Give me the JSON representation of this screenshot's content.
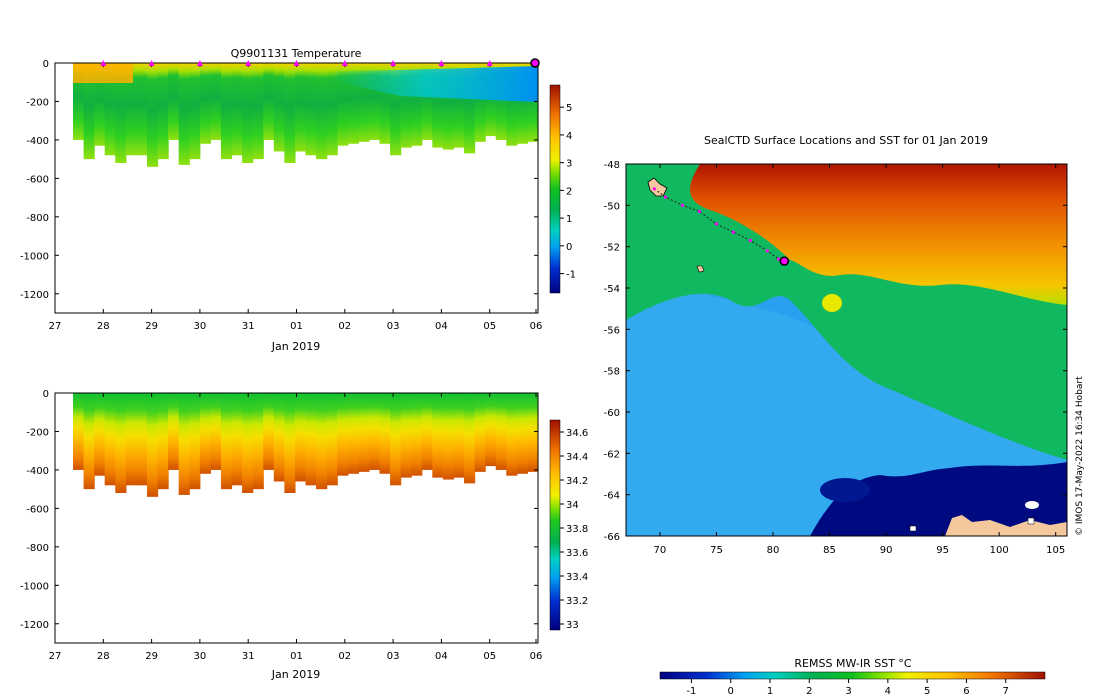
{
  "colors": {
    "land": "#f4c79c",
    "track": "#ff00ff",
    "axis": "#000000"
  },
  "chart_data": [
    {
      "id": "temperature-section",
      "type": "heatmap",
      "title": "Q9901131  Temperature",
      "xlabel": "Jan 2019",
      "ylabel": "",
      "x_tick_labels": [
        "27",
        "28",
        "29",
        "30",
        "31",
        "01",
        "02",
        "03",
        "04",
        "05",
        "06"
      ],
      "y_ticks": [
        0,
        -200,
        -400,
        -600,
        -800,
        -1000,
        -1200
      ],
      "ylim": [
        -1300,
        0
      ],
      "colorbar": {
        "ticks": [
          5,
          4,
          3,
          2,
          1,
          0,
          -1
        ],
        "range": [
          -1.7,
          5.8
        ]
      },
      "profile_markers": [
        "28",
        "29",
        "30",
        "31",
        "01",
        "02",
        "03",
        "04",
        "05",
        "06"
      ],
      "profile_depths": [
        400,
        500,
        430,
        480,
        520,
        480,
        480,
        540,
        500,
        400,
        530,
        500,
        420,
        400,
        500,
        480,
        520,
        500,
        400,
        460,
        520,
        460,
        480,
        500,
        480,
        430,
        420,
        410,
        400,
        420,
        480,
        440,
        430,
        400,
        440,
        450,
        440,
        470,
        410,
        380,
        400,
        430,
        420,
        410
      ]
    },
    {
      "id": "salinity-section",
      "type": "heatmap",
      "title": "",
      "xlabel": "Jan 2019",
      "ylabel": "",
      "x_tick_labels": [
        "27",
        "28",
        "29",
        "30",
        "31",
        "01",
        "02",
        "03",
        "04",
        "05",
        "06"
      ],
      "y_ticks": [
        0,
        -200,
        -400,
        -600,
        -800,
        -1000,
        -1200
      ],
      "ylim": [
        -1300,
        0
      ],
      "colorbar": {
        "ticks": [
          34.6,
          34.4,
          34.2,
          34,
          33.8,
          33.6,
          33.4,
          33.2,
          33
        ],
        "range": [
          32.95,
          34.7
        ]
      }
    },
    {
      "id": "sst-map",
      "type": "heatmap",
      "title": "SealCTD Surface Locations and SST for 01 Jan 2019",
      "x_tick_labels": [
        "70",
        "75",
        "80",
        "85",
        "90",
        "95",
        "100",
        "105"
      ],
      "y_tick_labels": [
        "-48",
        "-50",
        "-52",
        "-54",
        "-56",
        "-58",
        "-60",
        "-62",
        "-64",
        "-66"
      ],
      "xlim": [
        67,
        106
      ],
      "ylim": [
        -66,
        -48
      ],
      "track": [
        [
          69.5,
          -49.2
        ],
        [
          70.5,
          -49.6
        ],
        [
          72,
          -50
        ],
        [
          73.5,
          -50.3
        ],
        [
          75,
          -50.9
        ],
        [
          76.5,
          -51.3
        ],
        [
          78,
          -51.7
        ],
        [
          79.5,
          -52.2
        ],
        [
          80.5,
          -52.6
        ]
      ],
      "end_point": [
        81,
        -52.7
      ],
      "colorbar_label": "REMSS MW-IR SST °C",
      "colorbar_ticks": [
        "-1",
        "0",
        "1",
        "2",
        "3",
        "4",
        "5",
        "6",
        "7"
      ],
      "credit": "© IMOS 17-May-2022 16:34 Hobart"
    }
  ]
}
